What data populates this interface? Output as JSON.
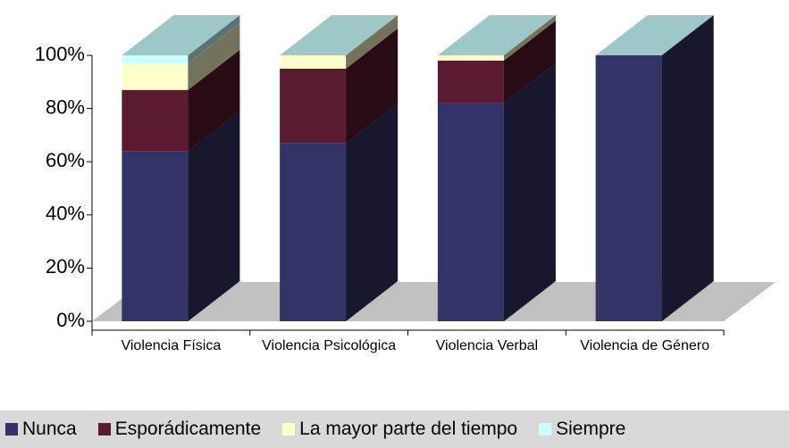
{
  "chart_data": {
    "type": "bar",
    "stacked": true,
    "categories": [
      "Violencia Física",
      "Violencia Psicológica",
      "Violencia Verbal",
      "Violencia de Género"
    ],
    "series": [
      {
        "name": "Nunca",
        "color": "#333366",
        "values": [
          64,
          67,
          82,
          100
        ]
      },
      {
        "name": "Esporádicamente",
        "color": "#5a1a30",
        "values": [
          23,
          28,
          16,
          0
        ]
      },
      {
        "name": "La mayor parte del tiempo",
        "color": "#ffffcc",
        "values": [
          10,
          5,
          2,
          0
        ]
      },
      {
        "name": "Siempre",
        "color": "#ccffff",
        "values": [
          3,
          0,
          0,
          0
        ]
      }
    ],
    "ylim": [
      0,
      100
    ],
    "yticks": [
      {
        "value": 0,
        "label": "0%"
      },
      {
        "value": 20,
        "label": "20%"
      },
      {
        "value": 40,
        "label": "40%"
      },
      {
        "value": 60,
        "label": "60%"
      },
      {
        "value": 80,
        "label": "80%"
      },
      {
        "value": 100,
        "label": "100%"
      }
    ],
    "legend": "bottom"
  }
}
